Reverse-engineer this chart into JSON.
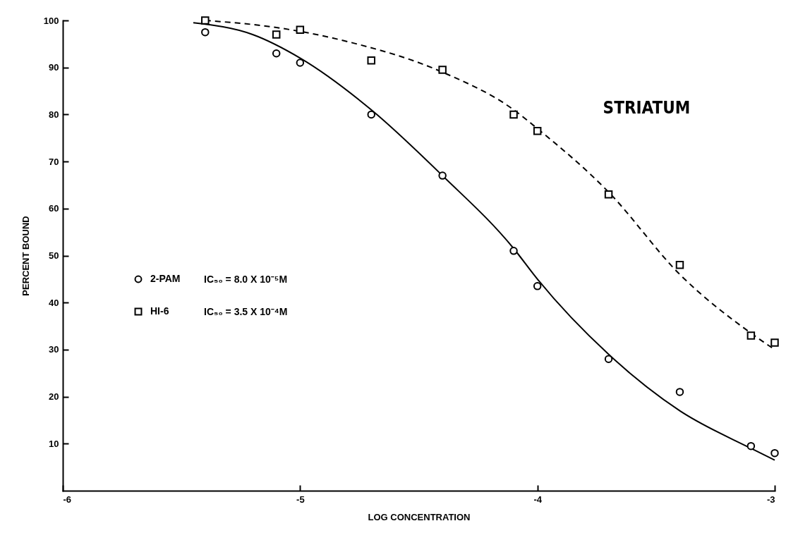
{
  "chart_data": {
    "type": "scatter",
    "xlabel": "LOG CONCENTRATION",
    "ylabel": "PERCENT BOUND",
    "xlim": [
      -6,
      -3
    ],
    "xticks": [
      -6,
      -5,
      -4,
      -3
    ],
    "ylim": [
      0,
      100
    ],
    "yticks": [
      10,
      20,
      30,
      40,
      50,
      60,
      70,
      80,
      90,
      100
    ],
    "grid": false,
    "legend": "left",
    "annotations": [
      "STRIATUM",
      "IC₅₀  =  8.0  X  10⁻⁵M",
      "IC₅₀  =  3.5  X  10⁻⁴M"
    ],
    "series": [
      {
        "name": "2-PAM",
        "marker": "circle",
        "color": "#000000",
        "x": [
          -5.4,
          -5.1,
          -5,
          -4.7,
          -4.4,
          -4.1,
          -4,
          -3.7,
          -3.4,
          -3.1,
          -3
        ],
        "values": [
          97.5,
          93,
          91,
          80,
          67,
          51,
          43.5,
          28,
          21,
          9.5,
          8
        ]
      },
      {
        "name": "HI-6",
        "marker": "square",
        "color": "#000000",
        "x": [
          -5.4,
          -5.1,
          -5,
          -4.7,
          -4.4,
          -4.1,
          -4,
          -3.7,
          -3.4,
          -3.1,
          -3
        ],
        "values": [
          100,
          97,
          98,
          91.5,
          89.5,
          80,
          76.5,
          63,
          48,
          33,
          31.5
        ]
      },
      {
        "type": "line",
        "line_style": "solid",
        "color": "#000000",
        "x": [
          -5.45,
          -5.2,
          -5,
          -4.7,
          -4.4,
          -4.1,
          -4,
          -3.7,
          -3.4,
          -3.1,
          -3
        ],
        "values": [
          99.5,
          97,
          92,
          81,
          67,
          51.5,
          45,
          29,
          17,
          9,
          6.5
        ]
      },
      {
        "type": "line",
        "line_style": "dashed",
        "color": "#000000",
        "x": [
          -5.4,
          -5.1,
          -4.8,
          -4.4,
          -4.1,
          -4,
          -3.7,
          -3.4,
          -3.1,
          -3
        ],
        "values": [
          100,
          98.5,
          95.5,
          89,
          81,
          77,
          63.5,
          46,
          33.5,
          30
        ]
      }
    ]
  }
}
